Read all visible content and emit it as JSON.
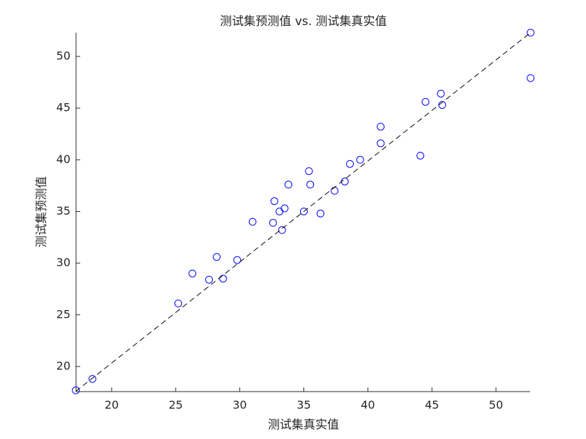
{
  "chart_data": {
    "type": "scatter",
    "title": "测试集预测值 vs. 测试集真实值",
    "x_label": "测试集真实值",
    "y_label": "测试集预测值",
    "xlim": [
      17.22,
      52.67
    ],
    "ylim": [
      17.57,
      52.29
    ],
    "xticks": [
      20,
      25,
      30,
      35,
      40,
      45,
      50
    ],
    "yticks": [
      20,
      25,
      30,
      35,
      40,
      45,
      50
    ],
    "grid": false,
    "series": [
      {
        "type": "scatter",
        "color": "#0000ff",
        "x": [
          17.2,
          18.5,
          25.2,
          26.3,
          27.6,
          28.2,
          28.7,
          29.8,
          31.0,
          32.6,
          32.7,
          33.1,
          33.5,
          33.3,
          33.8,
          35.0,
          35.4,
          35.5,
          36.3,
          37.4,
          38.2,
          38.6,
          39.4,
          41.0,
          41.0,
          44.1,
          44.5,
          45.7,
          45.8,
          52.7,
          52.7
        ],
        "values": [
          17.7,
          18.8,
          26.1,
          29.0,
          28.4,
          30.6,
          28.5,
          30.3,
          34.0,
          33.9,
          36.0,
          35.0,
          35.3,
          33.2,
          37.6,
          35.0,
          38.9,
          37.6,
          34.8,
          37.0,
          37.9,
          39.6,
          40.0,
          43.2,
          41.6,
          40.4,
          45.6,
          46.4,
          45.3,
          52.3,
          47.9
        ]
      },
      {
        "type": "line",
        "color": "#000000",
        "dash": true,
        "x": [
          17.2,
          52.7
        ],
        "values": [
          17.6,
          52.3
        ]
      }
    ]
  }
}
